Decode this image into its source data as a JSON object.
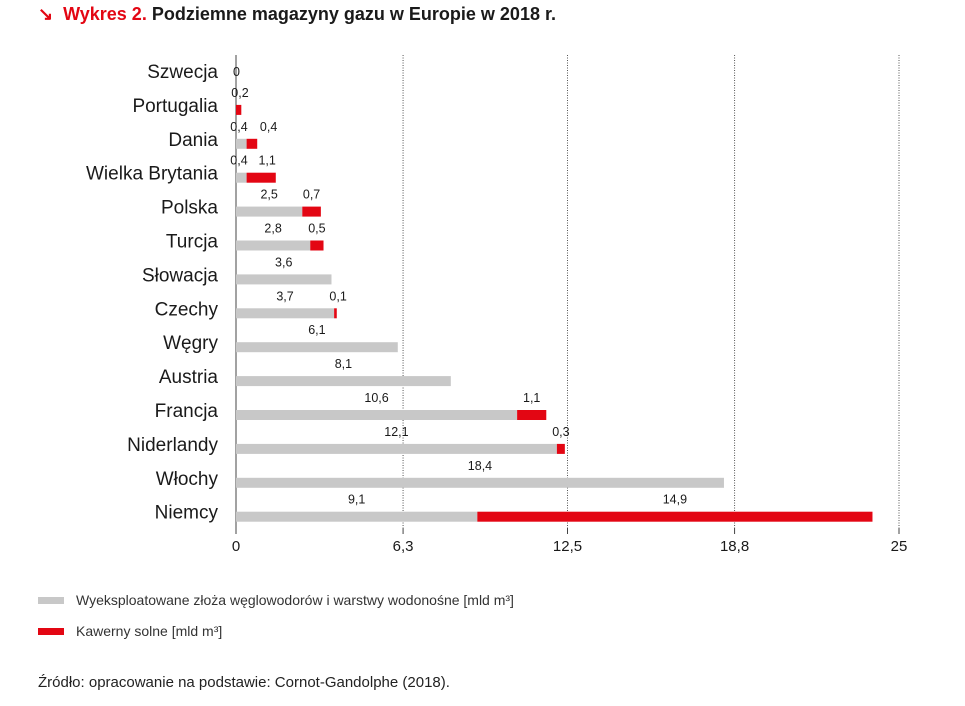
{
  "header": {
    "arrow": "↘",
    "label": "Wykres 2.",
    "title": "Podziemne magazyny gazu w Europie w 2018 r."
  },
  "chart_data": {
    "type": "bar",
    "orientation": "horizontal",
    "stacked": true,
    "categories": [
      "Szwecja",
      "Portugalia",
      "Dania",
      "Wielka Brytania",
      "Polska",
      "Turcja",
      "Słowacja",
      "Czechy",
      "Węgry",
      "Austria",
      "Francja",
      "Niderlandy",
      "Włochy",
      "Niemcy"
    ],
    "series": [
      {
        "name": "Wyeksploatowane złoża węglowodorów i warstwy wodonośne [mld m³]",
        "color": "#c8c8c8",
        "values": [
          0,
          0,
          0.4,
          0.4,
          2.5,
          2.8,
          3.6,
          3.7,
          6.1,
          8.1,
          10.6,
          12.1,
          18.4,
          9.1
        ],
        "labels": [
          "0",
          "",
          "0,4",
          "0,4",
          "2,5",
          "2,8",
          "3,6",
          "3,7",
          "6,1",
          "8,1",
          "10,6",
          "12,1",
          "18,4",
          "9,1"
        ]
      },
      {
        "name": "Kawerny solne [mld m³]",
        "color": "#e30613",
        "values": [
          0,
          0.2,
          0.4,
          1.1,
          0.7,
          0.5,
          0,
          0.1,
          0,
          0,
          1.1,
          0.3,
          0,
          14.9
        ],
        "labels": [
          "",
          "0,2",
          "0,4",
          "1,1",
          "0,7",
          "0,5",
          "",
          "0,1",
          "",
          "",
          "1,1",
          "0,3",
          "",
          "14,9"
        ]
      }
    ],
    "x_ticks": [
      0,
      6.3,
      12.5,
      18.8,
      25
    ],
    "x_tick_labels": [
      "0",
      "6,3",
      "12,5",
      "18,8",
      "25"
    ],
    "xlim": [
      0,
      25
    ],
    "grid": "vertical-dotted"
  },
  "legend": {
    "items": [
      {
        "label": "Wyeksploatowane złoża węglowodorów i warstwy wodonośne [mld m³]",
        "color": "#c8c8c8"
      },
      {
        "label": "Kawerny solne [mld m³]",
        "color": "#e30613"
      }
    ]
  },
  "source": "Źródło: opracowanie na podstawie: Cornot-Gandolphe (2018)."
}
